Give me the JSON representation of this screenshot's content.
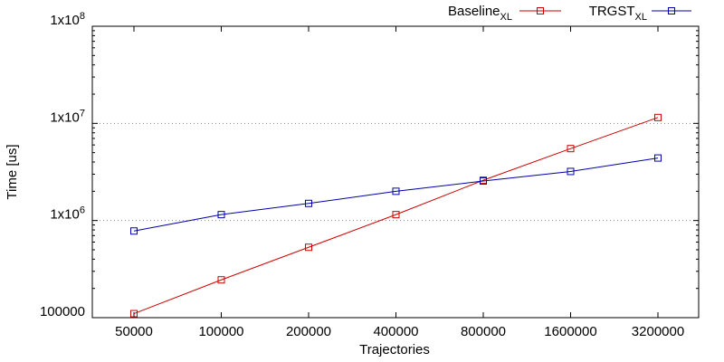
{
  "chart_data": {
    "type": "line",
    "xlabel": "Trajectories",
    "ylabel": "Time [us]",
    "y_scale": "log",
    "ylim": [
      100000,
      100000000
    ],
    "categories": [
      "50000",
      "100000",
      "200000",
      "400000",
      "800000",
      "1600000",
      "3200000"
    ],
    "y_ticks": [
      {
        "value": 100000,
        "label": "100000",
        "sup": ""
      },
      {
        "value": 1000000,
        "label": "1x10",
        "sup": "6"
      },
      {
        "value": 10000000,
        "label": "1x10",
        "sup": "7"
      },
      {
        "value": 100000000,
        "label": "1x10",
        "sup": "8"
      }
    ],
    "grid": "horizontal dotted at decades",
    "legend_position": "top-right",
    "series": [
      {
        "name": "Baseline",
        "name_sub": "XL",
        "color": "#cc0000",
        "marker": "square",
        "values": [
          110000,
          245000,
          530000,
          1150000,
          2600000,
          5500000,
          11500000
        ]
      },
      {
        "name": "TRGST",
        "name_sub": "XL",
        "color": "#0000aa",
        "marker": "square",
        "values": [
          780000,
          1150000,
          1500000,
          2000000,
          2550000,
          3200000,
          4400000
        ]
      }
    ]
  }
}
